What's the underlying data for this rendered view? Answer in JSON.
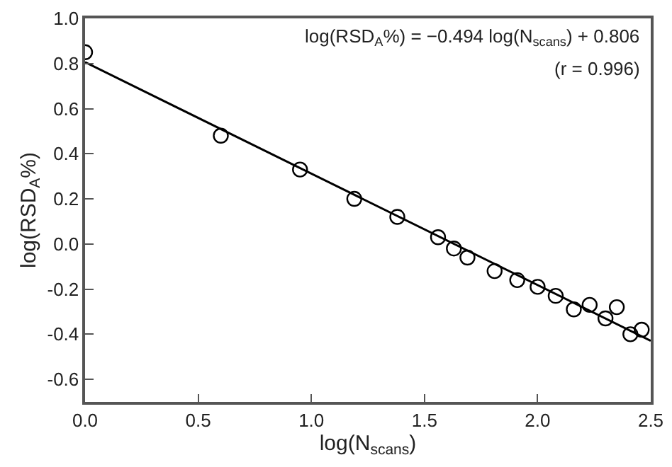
{
  "chart_data": {
    "type": "scatter",
    "xlabel": "log(N$_{scans}$)",
    "ylabel": "log(RSD$_{A}$%)",
    "annotations": [
      "log(RSD$_{A}$%) = −0.494 log(N$_{scans}$) + 0.806",
      "(r = 0.996)"
    ],
    "series": [
      {
        "color": "#000000",
        "x": [
          0.0,
          0.6,
          0.95,
          1.19,
          1.38,
          1.56,
          1.63,
          1.69,
          1.81,
          1.91,
          2.0,
          2.08,
          2.16,
          2.23,
          2.3,
          2.35,
          2.41,
          2.46
        ],
        "values": [
          0.85,
          0.48,
          0.33,
          0.2,
          0.12,
          0.03,
          -0.02,
          -0.06,
          -0.12,
          -0.16,
          -0.19,
          -0.23,
          -0.29,
          -0.27,
          -0.33,
          -0.28,
          -0.4,
          -0.38
        ]
      },
      {
        "type": "line",
        "color": "#000000",
        "line_style": "solid",
        "marker": "none",
        "x": [
          0.0,
          2.5
        ],
        "values": [
          0.806,
          -0.429
        ]
      }
    ],
    "xlim": [
      0,
      2.5
    ],
    "ylim": [
      -0.7,
      1.0
    ],
    "xticks": [
      {
        "value": 0,
        "label": "0.0"
      },
      0.5,
      {
        "value": 1,
        "label": "1.0"
      },
      1.5,
      {
        "value": 2,
        "label": "2.0"
      },
      2.5
    ],
    "yticks": [
      -0.6,
      -0.4,
      -0.2,
      {
        "value": 0,
        "label": "0.0"
      },
      0.2,
      0.4,
      0.6,
      0.8,
      {
        "value": 1,
        "label": "1.0"
      }
    ],
    "marker": "circle"
  }
}
